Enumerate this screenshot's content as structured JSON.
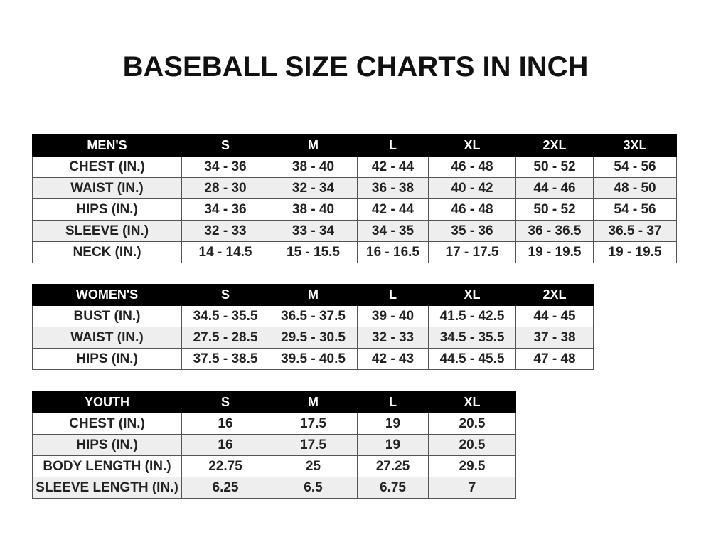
{
  "title": "BASEBALL SIZE CHARTS IN INCH",
  "men": {
    "headers": [
      "MEN'S",
      "S",
      "M",
      "L",
      "XL",
      "2XL",
      "3XL"
    ],
    "rows": [
      [
        "CHEST (IN.)",
        "34 - 36",
        "38 - 40",
        "42 - 44",
        "46 - 48",
        "50 - 52",
        "54 - 56"
      ],
      [
        "WAIST (IN.)",
        "28 - 30",
        "32 - 34",
        "36 - 38",
        "40 - 42",
        "44 - 46",
        "48 - 50"
      ],
      [
        "HIPS (IN.)",
        "34 - 36",
        "38 - 40",
        "42 - 44",
        "46 - 48",
        "50 - 52",
        "54 - 56"
      ],
      [
        "SLEEVE (IN.)",
        "32 - 33",
        "33 - 34",
        "34 - 35",
        "35 - 36",
        "36 - 36.5",
        "36.5 - 37"
      ],
      [
        "NECK (IN.)",
        "14 - 14.5",
        "15 - 15.5",
        "16 - 16.5",
        "17 - 17.5",
        "19 - 19.5",
        "19 - 19.5"
      ]
    ]
  },
  "women": {
    "headers": [
      "WOMEN'S",
      "S",
      "M",
      "L",
      "XL",
      "2XL"
    ],
    "rows": [
      [
        "BUST (IN.)",
        "34.5 - 35.5",
        "36.5 - 37.5",
        "39 - 40",
        "41.5 - 42.5",
        "44 - 45"
      ],
      [
        "WAIST (IN.)",
        "27.5 - 28.5",
        "29.5 - 30.5",
        "32 - 33",
        "34.5 - 35.5",
        "37 - 38"
      ],
      [
        "HIPS (IN.)",
        "37.5 - 38.5",
        "39.5 - 40.5",
        "42 - 43",
        "44.5 - 45.5",
        "47 - 48"
      ]
    ]
  },
  "youth": {
    "headers": [
      "YOUTH",
      "S",
      "M",
      "L",
      "XL"
    ],
    "rows": [
      [
        "CHEST (IN.)",
        "16",
        "17.5",
        "19",
        "20.5"
      ],
      [
        "HIPS (IN.)",
        "16",
        "17.5",
        "19",
        "20.5"
      ],
      [
        "BODY LENGTH (IN.)",
        "22.75",
        "25",
        "27.25",
        "29.5"
      ],
      [
        "SLEEVE LENGTH (IN.)",
        "6.25",
        "6.5",
        "6.75",
        "7"
      ]
    ]
  }
}
